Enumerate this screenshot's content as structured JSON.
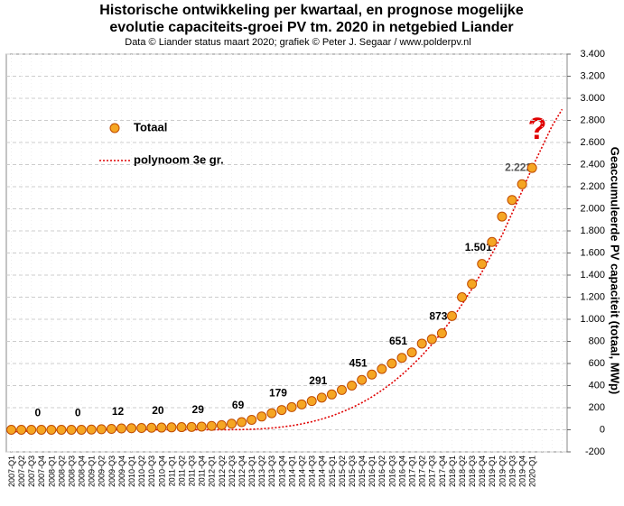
{
  "chart_data": {
    "type": "line",
    "title": [
      "Historische  ontwikkeling  per kwartaal, en prognose mogelijke",
      "evolutie  capaciteits-groei  PV tm. 2020 in netgebied Liander"
    ],
    "subtitle": "Data © Liander status maart 2020; grafiek © Peter J. Segaar / www.polderpv.nl",
    "y_label": "Geaccumuleerde  PV  capaciteit  (totaal, MWp)",
    "annotation": "?",
    "categories": [
      "2007-Q1",
      "2007-Q2",
      "2007-Q3",
      "2007-Q4",
      "2008-Q1",
      "2008-Q2",
      "2008-Q3",
      "2008-Q4",
      "2009-Q1",
      "2009-Q2",
      "2009-Q3",
      "2009-Q4",
      "2010-Q1",
      "2010-Q2",
      "2010-Q3",
      "2010-Q4",
      "2011-Q1",
      "2011-Q2",
      "2011-Q3",
      "2011-Q4",
      "2012-Q1",
      "2012-Q2",
      "2012-Q3",
      "2012-Q4",
      "2013-Q1",
      "2013-Q2",
      "2013-Q3",
      "2013-Q4",
      "2014-Q1",
      "2014-Q2",
      "2014-Q3",
      "2014-Q4",
      "2015-Q1",
      "2015-Q2",
      "2015-Q3",
      "2015-Q4",
      "2016-Q1",
      "2016-Q2",
      "2016-Q3",
      "2016-Q4",
      "2017-Q1",
      "2017-Q2",
      "2017-Q3",
      "2017-Q4",
      "2018-Q1",
      "2018-Q2",
      "2018-Q3",
      "2018-Q4",
      "2019-Q1",
      "2019-Q2",
      "2019-Q3",
      "2019-Q4",
      "2020-Q1",
      null,
      null,
      null
    ],
    "series": [
      {
        "name": "Totaal",
        "color": "#f5a623",
        "edge": "#c04a00",
        "values": [
          0,
          0,
          0,
          0,
          0,
          0,
          0,
          0,
          2,
          5,
          8,
          12,
          14,
          16,
          18,
          20,
          22,
          24,
          26,
          29,
          35,
          42,
          55,
          69,
          90,
          120,
          150,
          179,
          205,
          230,
          260,
          291,
          320,
          360,
          400,
          451,
          500,
          550,
          600,
          651,
          700,
          780,
          820,
          873,
          1030,
          1200,
          1320,
          1501,
          1700,
          1930,
          2080,
          2222,
          2370,
          null,
          null,
          null
        ],
        "value_labels": [
          null,
          null,
          null,
          "0",
          null,
          null,
          null,
          "0",
          null,
          null,
          null,
          "12",
          null,
          null,
          null,
          "20",
          null,
          null,
          null,
          "29",
          null,
          null,
          null,
          "69",
          null,
          null,
          null,
          "179",
          null,
          null,
          null,
          "291",
          null,
          null,
          null,
          "451",
          null,
          null,
          null,
          "651",
          null,
          null,
          null,
          "873",
          null,
          null,
          null,
          "1.501",
          null,
          null,
          null,
          "2.222",
          null,
          null,
          null,
          null
        ]
      },
      {
        "name": "polynoom 3e gr.",
        "color": "#e00000",
        "values": [
          -20,
          -15,
          -10,
          -8,
          -5,
          -3,
          -2,
          0,
          0,
          0,
          0,
          0,
          0,
          0,
          0,
          0,
          0,
          0,
          0,
          0,
          0,
          0,
          1,
          2,
          5,
          9,
          16,
          25,
          37,
          53,
          73,
          97,
          125,
          160,
          199,
          245,
          297,
          357,
          423,
          498,
          581,
          672,
          773,
          883,
          1003,
          1134,
          1276,
          1429,
          1594,
          1760,
          1960,
          2160,
          2370,
          2560,
          2750,
          2900
        ]
      }
    ],
    "ylim": [
      -200,
      3400
    ],
    "yticks": [
      -200,
      0,
      200,
      400,
      600,
      800,
      {
        "value": 1000,
        "label": "1.000"
      },
      {
        "value": 1200,
        "label": "1.200"
      },
      {
        "value": 1400,
        "label": "1.400"
      },
      {
        "value": 1600,
        "label": "1.600"
      },
      {
        "value": 1800,
        "label": "1.800"
      },
      {
        "value": 2000,
        "label": "2.000"
      },
      {
        "value": 2200,
        "label": "2.200"
      },
      {
        "value": 2400,
        "label": "2.400"
      },
      {
        "value": 2600,
        "label": "2.600"
      },
      {
        "value": 2800,
        "label": "2.800"
      },
      {
        "value": 3000,
        "label": "3.000"
      },
      {
        "value": 3200,
        "label": "3.200"
      },
      {
        "value": 3400,
        "label": "3.400"
      }
    ],
    "grid": true
  }
}
